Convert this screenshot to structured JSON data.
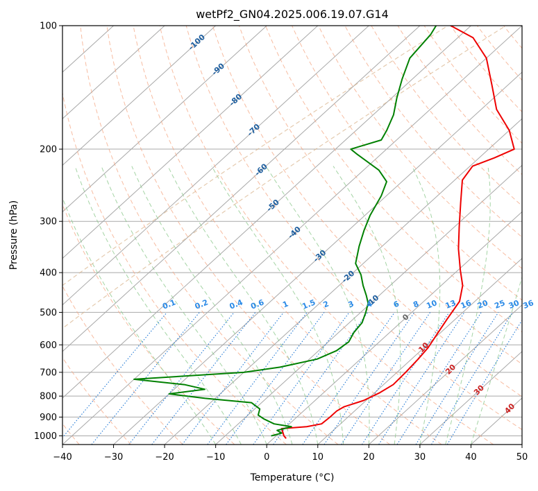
{
  "chart_data": {
    "type": "line",
    "subtype": "skew-t log-p diagram",
    "title": "wetPf2_GN04.2025.006.19.07.G14",
    "xlabel": "Temperature (°C)",
    "ylabel": "Pressure (hPa)",
    "xlim": [
      -40,
      50
    ],
    "ylim": [
      1050,
      100
    ],
    "y_scale": "log",
    "grid": true,
    "x_ticks": [
      "−40",
      "−30",
      "−20",
      "−10",
      "0",
      "10",
      "20",
      "30",
      "40",
      "50"
    ],
    "x_tick_values": [
      -40,
      -30,
      -20,
      -10,
      0,
      10,
      20,
      30,
      40,
      50
    ],
    "y_ticks": [
      "1000",
      "900",
      "800",
      "700",
      "600",
      "500",
      "400",
      "300",
      "200",
      "100"
    ],
    "y_tick_values": [
      1000,
      900,
      800,
      700,
      600,
      500,
      400,
      300,
      200,
      100
    ],
    "colors": {
      "temperature": "#ee0000",
      "dewpoint": "#008000",
      "isotherm": "#a8a8a8",
      "dry_adiabat": "#f4a582",
      "moist_adiabat": "#8fc98f",
      "mixing_ratio": "#1f77d4",
      "isotherm_label": "#1f5f9f",
      "mixing_ratio_label": "#2b8ae6",
      "moist_label": "#cc2222",
      "zero_label": "#666666",
      "envelope": "#d8b48c"
    },
    "series": [
      {
        "key": "temperature",
        "points": [
          [
            2.5,
            1015
          ],
          [
            1.5,
            1000
          ],
          [
            -0.5,
            960
          ],
          [
            4,
            950
          ],
          [
            6.3,
            935
          ],
          [
            6.5,
            900
          ],
          [
            6.5,
            870
          ],
          [
            7,
            850
          ],
          [
            9.5,
            820
          ],
          [
            11,
            785
          ],
          [
            11.9,
            750
          ],
          [
            11.7,
            700
          ],
          [
            11.3,
            650
          ],
          [
            10.8,
            610
          ],
          [
            9.5,
            560
          ],
          [
            8.4,
            520
          ],
          [
            7,
            470
          ],
          [
            4.2,
            430
          ],
          [
            0.5,
            395
          ],
          [
            -4.5,
            350
          ],
          [
            -9,
            310
          ],
          [
            -14,
            270
          ],
          [
            -18.5,
            238
          ],
          [
            -19.5,
            220
          ],
          [
            -17,
            210
          ],
          [
            -15,
            200
          ],
          [
            -20,
            180
          ],
          [
            -27,
            160
          ],
          [
            -33,
            140
          ],
          [
            -40,
            120
          ],
          [
            -47,
            107
          ],
          [
            -55,
            99
          ]
        ]
      },
      {
        "key": "dewpoint",
        "points": [
          [
            -1,
            1000
          ],
          [
            0.5,
            985
          ],
          [
            -1,
            970
          ],
          [
            1,
            950
          ],
          [
            -3,
            935
          ],
          [
            -6,
            910
          ],
          [
            -8,
            890
          ],
          [
            -9,
            860
          ],
          [
            -12,
            830
          ],
          [
            -22,
            810
          ],
          [
            -30,
            790
          ],
          [
            -24,
            770
          ],
          [
            -29,
            750
          ],
          [
            -40,
            728
          ],
          [
            -20,
            700
          ],
          [
            -14,
            680
          ],
          [
            -8.5,
            650
          ],
          [
            -6.5,
            620
          ],
          [
            -6,
            590
          ],
          [
            -7,
            560
          ],
          [
            -7.5,
            530
          ],
          [
            -9,
            500
          ],
          [
            -10.5,
            475
          ],
          [
            -12.5,
            455
          ],
          [
            -15.3,
            430
          ],
          [
            -18,
            405
          ],
          [
            -21.5,
            380
          ],
          [
            -24.5,
            345
          ],
          [
            -27,
            315
          ],
          [
            -29,
            290
          ],
          [
            -31,
            260
          ],
          [
            -33,
            240
          ],
          [
            -37,
            225
          ],
          [
            -45,
            205
          ],
          [
            -47,
            200
          ],
          [
            -43,
            190
          ],
          [
            -44,
            180
          ],
          [
            -46,
            165
          ],
          [
            -49,
            150
          ],
          [
            -52,
            135
          ],
          [
            -55,
            120
          ],
          [
            -56,
            105
          ],
          [
            -57,
            99
          ]
        ]
      }
    ],
    "isotherm_labels": [
      "-100",
      "-90",
      "-80",
      "-70",
      "-60",
      "-50",
      "-40",
      "-30",
      "-20",
      "-10"
    ],
    "isotherm_label_points": [
      [
        -100,
        110
      ],
      [
        -90,
        128
      ],
      [
        -80,
        152
      ],
      [
        -70,
        180
      ],
      [
        -60,
        225
      ],
      [
        -50,
        275
      ],
      [
        -40,
        320
      ],
      [
        -30,
        365
      ],
      [
        -20,
        410
      ],
      [
        -10,
        470
      ]
    ],
    "mixing_ratio_labels": [
      "0.1",
      "0.2",
      "0.4",
      "0.6",
      "1",
      "1.5",
      "2",
      "3",
      "4",
      "6",
      "8",
      "10",
      "13",
      "16",
      "20",
      "25",
      "30",
      "36"
    ],
    "mixing_ratio_values": [
      0.1,
      0.2,
      0.4,
      0.6,
      1,
      1.5,
      2,
      3,
      4,
      6,
      8,
      10,
      13,
      16,
      20,
      25,
      30,
      36
    ],
    "moist_adiabat_labels": [
      "0",
      "10",
      "20",
      "30",
      "40"
    ],
    "moist_label_points": [
      [
        0,
        515
      ],
      [
        10,
        610
      ],
      [
        20,
        690
      ],
      [
        30,
        775
      ],
      [
        40,
        860
      ]
    ]
  }
}
